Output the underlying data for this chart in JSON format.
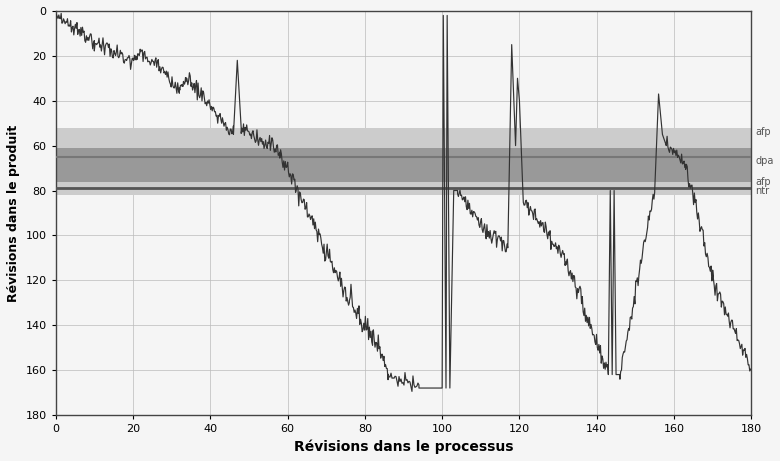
{
  "title": "",
  "xlabel": "Révisions dans le processus",
  "ylabel": "Révisions dans le produit",
  "xlim": [
    0,
    180
  ],
  "ylim": [
    180,
    0
  ],
  "xticks": [
    0,
    20,
    40,
    60,
    80,
    100,
    120,
    140,
    160,
    180
  ],
  "yticks": [
    0,
    20,
    40,
    60,
    80,
    100,
    120,
    140,
    160,
    180
  ],
  "band_light_ymin": 52,
  "band_light_ymax": 82,
  "band_dark_ymin": 61,
  "band_dark_ymax": 76,
  "hline1": 65,
  "hline2": 79,
  "label_afp1": 54,
  "label_dpa": 67,
  "label_afp2": 76,
  "label_ntr": 80,
  "bg_color": "#f5f5f5",
  "band_light_color": "#cccccc",
  "band_dark_color": "#999999",
  "line_color": "#333333",
  "label_color": "#555555",
  "figsize": [
    7.8,
    4.61
  ],
  "dpi": 100
}
